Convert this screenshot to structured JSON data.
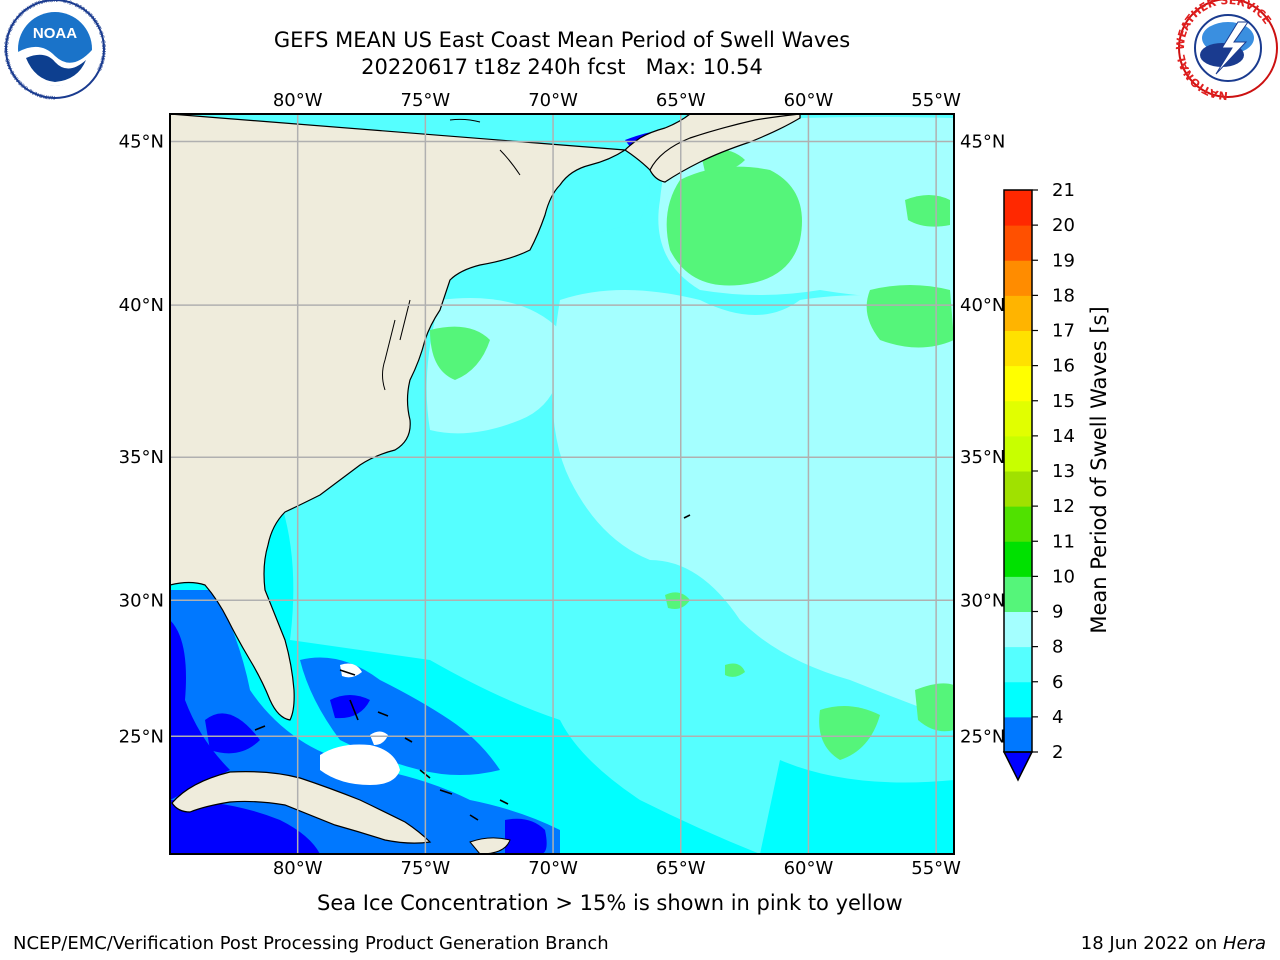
{
  "title": {
    "line1": "GEFS MEAN US East Coast Mean Period of Swell Waves",
    "line2": "20220617 t18z 240h fcst   Max: 10.54"
  },
  "subtitle": "Sea Ice Concentration > 15% is shown in pink to yellow",
  "footer": {
    "left": "NCEP/EMC/Verification Post Processing Product Generation Branch",
    "right_prefix": "18 Jun 2022 on ",
    "right_host": "Hera"
  },
  "logos": {
    "left": {
      "icon": "noaa-logo",
      "text": "NOAA",
      "ring_text": "NATIONAL OCEANIC AND ATMOSPHERIC ADMINISTRATION · U.S. DEPARTMENT OF COMMERCE"
    },
    "right": {
      "icon": "nws-logo",
      "ring_text": "NATIONAL WEATHER SERVICE"
    }
  },
  "map": {
    "lon_ticks": [
      "80°W",
      "75°W",
      "70°W",
      "65°W",
      "60°W",
      "55°W"
    ],
    "lat_ticks": [
      "45°N",
      "40°N",
      "35°N",
      "30°N",
      "25°N"
    ],
    "lon_values": [
      -80,
      -75,
      -70,
      -65,
      -60,
      -55
    ],
    "lat_values": [
      45,
      40,
      35,
      30,
      25
    ],
    "extent": {
      "lon_min": -85,
      "lon_max": -54.3,
      "lat_min": 20.5,
      "lat_max": 45.8
    },
    "gridlines": true,
    "colors": {
      "land": "#efecdc",
      "ocean_4_6": "#00ffff",
      "ocean_6_8": "#55ffff",
      "ocean_8_9": "#a4ffff",
      "ocean_9_10": "#55f57a",
      "ocean_2_4": "#0078ff",
      "ocean_below_2": "#0000ff",
      "missing": "#ffffff",
      "grid": "#b0b0b0"
    }
  },
  "colorbar": {
    "label": "Mean Period of Swell Waves [s]",
    "ticks": [
      "2",
      "4",
      "6",
      "8",
      "9",
      "10",
      "11",
      "12",
      "13",
      "14",
      "15",
      "16",
      "17",
      "18",
      "19",
      "20",
      "21"
    ],
    "colors": [
      "#0078ff",
      "#00ffff",
      "#55ffff",
      "#a4ffff",
      "#55f57a",
      "#00e100",
      "#50e100",
      "#a0e100",
      "#c8ff00",
      "#e1ff00",
      "#ffff00",
      "#ffe100",
      "#ffb400",
      "#ff8c00",
      "#ff5000",
      "#ff2800",
      "#ff0000"
    ],
    "under_color": "#0000ff",
    "extend": "min"
  }
}
